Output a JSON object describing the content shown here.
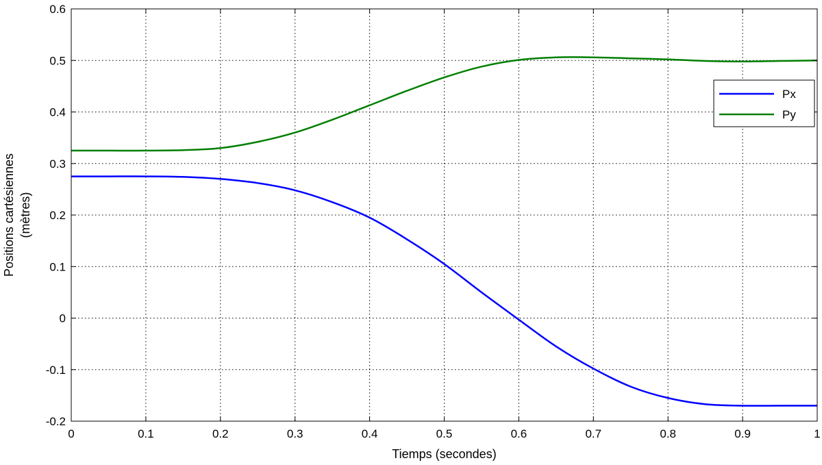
{
  "chart_data": {
    "type": "line",
    "title": "",
    "xlabel": "Tiemps (secondes)",
    "ylabel_lines": [
      "Positions cartésiennes",
      "(mètres)"
    ],
    "xlim": [
      0,
      1
    ],
    "ylim": [
      -0.2,
      0.6
    ],
    "xticks": [
      "0",
      "0.1",
      "0.2",
      "0.3",
      "0.4",
      "0.5",
      "0.6",
      "0.7",
      "0.8",
      "0.9",
      "1"
    ],
    "yticks": [
      "-0.2",
      "-0.1",
      "0",
      "0.1",
      "0.2",
      "0.3",
      "0.4",
      "0.5",
      "0.6"
    ],
    "grid": true,
    "legend_position": "top-right",
    "series": [
      {
        "name": "Px",
        "color": "#0000ff",
        "x": [
          0,
          0.05,
          0.1,
          0.15,
          0.2,
          0.25,
          0.3,
          0.35,
          0.4,
          0.45,
          0.5,
          0.55,
          0.6,
          0.65,
          0.7,
          0.75,
          0.8,
          0.85,
          0.9,
          0.95,
          1.0
        ],
        "y": [
          0.275,
          0.275,
          0.275,
          0.274,
          0.27,
          0.262,
          0.248,
          0.225,
          0.195,
          0.153,
          0.105,
          0.05,
          -0.003,
          -0.055,
          -0.098,
          -0.133,
          -0.155,
          -0.167,
          -0.17,
          -0.17,
          -0.17
        ]
      },
      {
        "name": "Py",
        "color": "#007f00",
        "x": [
          0,
          0.05,
          0.1,
          0.15,
          0.2,
          0.25,
          0.3,
          0.35,
          0.4,
          0.45,
          0.5,
          0.55,
          0.6,
          0.65,
          0.7,
          0.75,
          0.8,
          0.85,
          0.9,
          0.95,
          1.0
        ],
        "y": [
          0.325,
          0.325,
          0.325,
          0.326,
          0.33,
          0.342,
          0.36,
          0.385,
          0.413,
          0.441,
          0.467,
          0.488,
          0.501,
          0.506,
          0.506,
          0.504,
          0.502,
          0.499,
          0.498,
          0.499,
          0.5
        ]
      }
    ]
  }
}
